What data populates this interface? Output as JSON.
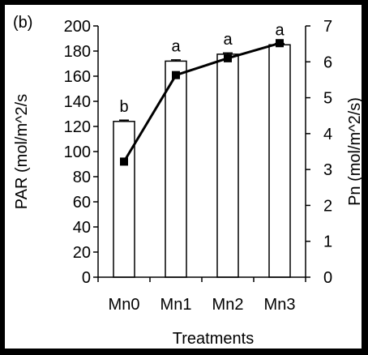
{
  "chart_data": {
    "type": "bar",
    "panel_label": "(b)",
    "categories": [
      "Mn0",
      "Mn1",
      "Mn2",
      "Mn3"
    ],
    "xlabel": "Treatments",
    "ylabel": "PAR (mol/m^2/s",
    "y2label": "Pn (mol/m^2/s)",
    "ylim": [
      0,
      200
    ],
    "y2lim": [
      0,
      7
    ],
    "yticks": [
      "0",
      "20",
      "40",
      "60",
      "80",
      "100",
      "120",
      "140",
      "160",
      "180",
      "200"
    ],
    "y2ticks": [
      "0",
      "1",
      "2",
      "3",
      "4",
      "5",
      "6",
      "7"
    ],
    "grid": false,
    "series": [
      {
        "kind": "bar",
        "axis": "left",
        "values": [
          124,
          172,
          177.5,
          185
        ],
        "errors": [
          1,
          1,
          1,
          1
        ],
        "annotations": [
          "b",
          "a",
          "a",
          "a"
        ]
      },
      {
        "kind": "line",
        "axis": "right",
        "marker": "square",
        "values": [
          3.22,
          5.63,
          6.1,
          6.52
        ]
      }
    ],
    "colors": {
      "bar_fill": "#ffffff",
      "stroke": "#000000",
      "background": "#000000"
    }
  }
}
